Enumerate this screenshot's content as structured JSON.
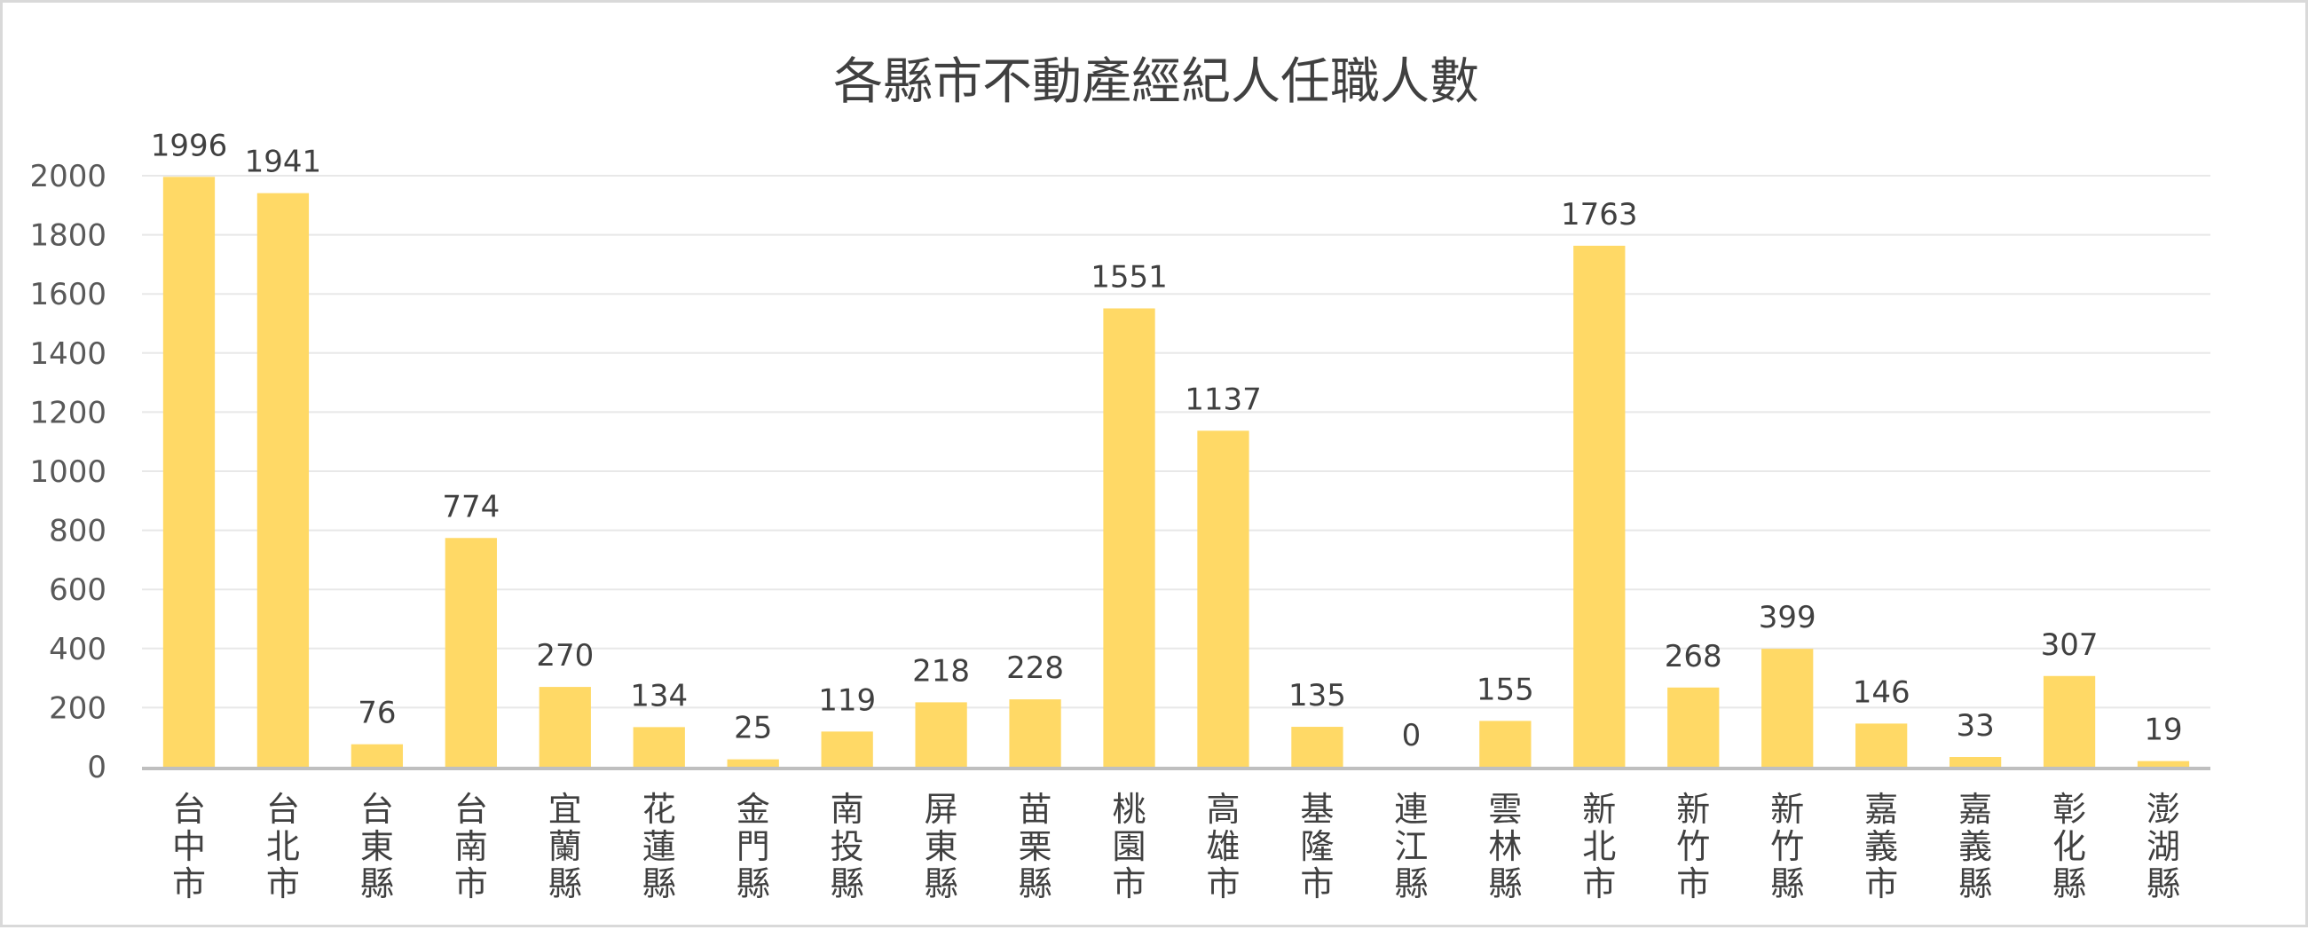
{
  "chart_data": {
    "type": "bar",
    "title": "各縣市不動產經紀人任職人數",
    "xlabel": "",
    "ylabel": "",
    "categories": [
      "台中市",
      "台北市",
      "台東縣",
      "台南市",
      "宜蘭縣",
      "花蓮縣",
      "金門縣",
      "南投縣",
      "屏東縣",
      "苗栗縣",
      "桃園市",
      "高雄市",
      "基隆市",
      "連江縣",
      "雲林縣",
      "新北市",
      "新竹市",
      "新竹縣",
      "嘉義市",
      "嘉義縣",
      "彰化縣",
      "澎湖縣"
    ],
    "values": [
      1996,
      1941,
      76,
      774,
      270,
      134,
      25,
      119,
      218,
      228,
      1551,
      1137,
      135,
      0,
      155,
      1763,
      268,
      399,
      146,
      33,
      307,
      19
    ],
    "yticks": [
      0,
      200,
      400,
      600,
      800,
      1000,
      1200,
      1400,
      1600,
      1800,
      2000
    ],
    "ylim": [
      0,
      2000
    ],
    "grid": true,
    "legend": "none",
    "data_labels": true,
    "bar_color": "#FFD966",
    "grid_color": "#e8e8e8",
    "axis_color": "#bfbfbf"
  }
}
